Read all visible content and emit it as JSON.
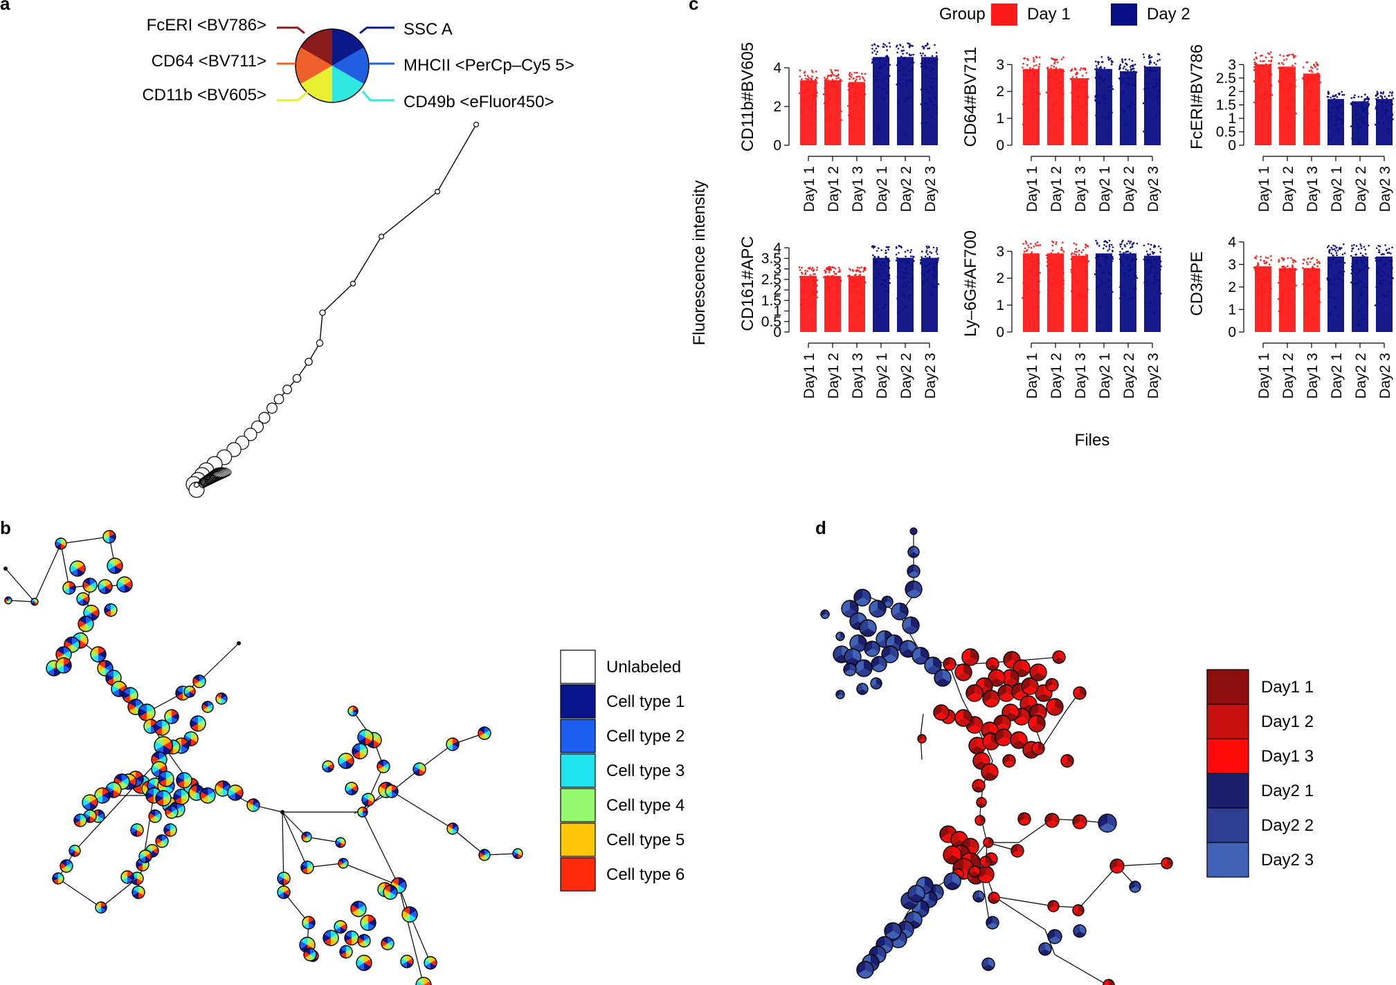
{
  "chart_data": [
    {
      "panel": "a",
      "type": "star-tree",
      "markers": [
        {
          "name": "FcERI <BV786>",
          "color": "#8B1A1A"
        },
        {
          "name": "SSC A",
          "color": "#0B1A8A"
        },
        {
          "name": "MHCII <PerCp–Cy5 5>",
          "color": "#1F5FE0"
        },
        {
          "name": "CD49b <eFluor450>",
          "color": "#2EE8E0"
        },
        {
          "name": "CD11b <BV605>",
          "color": "#E8F032"
        },
        {
          "name": "CD64 <BV711>",
          "color": "#F0602A"
        }
      ]
    },
    {
      "panel": "b",
      "type": "minimum-spanning-tree",
      "legend": [
        {
          "label": "Unlabeled",
          "color": "#FFFFFF"
        },
        {
          "label": "Cell type 1",
          "color": "#0A148C"
        },
        {
          "label": "Cell type 2",
          "color": "#1B5EF0"
        },
        {
          "label": "Cell type 3",
          "color": "#1EE3F0"
        },
        {
          "label": "Cell type 4",
          "color": "#96FA6E"
        },
        {
          "label": "Cell type 5",
          "color": "#FFC60A"
        },
        {
          "label": "Cell type 6",
          "color": "#FF2A0A"
        }
      ]
    },
    {
      "panel": "c",
      "type": "scatter",
      "legend_title": "Group",
      "groups": [
        {
          "name": "Day 1",
          "color": "#FF1A1A"
        },
        {
          "name": "Day 2",
          "color": "#0A0E85"
        }
      ],
      "ylabel": "Fluorescence intensity",
      "xlabel": "Files",
      "files": [
        "Day1 1",
        "Day1 2",
        "Day1 3",
        "Day2 1",
        "Day2 2",
        "Day2 3"
      ],
      "subplots": [
        {
          "marker": "CD11b#BV605",
          "ylim": [
            0,
            5
          ],
          "yticks": [
            0,
            2,
            4
          ],
          "ranges": [
            [
              0,
              3.9
            ],
            [
              0,
              3.9
            ],
            [
              0,
              3.8
            ],
            [
              0,
              5.3
            ],
            [
              0,
              5.3
            ],
            [
              0,
              5.3
            ]
          ]
        },
        {
          "marker": "CD64#BV711",
          "ylim": [
            0,
            3.6
          ],
          "yticks": [
            0,
            1,
            2,
            3
          ],
          "ranges": [
            [
              0,
              3.3
            ],
            [
              0,
              3.3
            ],
            [
              0,
              2.9
            ],
            [
              0,
              3.3
            ],
            [
              0,
              3.2
            ],
            [
              0,
              3.4
            ]
          ]
        },
        {
          "marker": "FcERI#BV786",
          "ylim": [
            0,
            3.6
          ],
          "yticks": [
            0,
            0.5,
            1,
            1.5,
            2,
            2.5,
            3
          ],
          "ranges": [
            [
              0,
              3.5
            ],
            [
              0,
              3.4
            ],
            [
              0,
              3.1
            ],
            [
              0,
              2.0
            ],
            [
              0,
              1.9
            ],
            [
              0,
              2.0
            ]
          ]
        },
        {
          "marker": "CD161#APC",
          "ylim": [
            0,
            4.6
          ],
          "yticks": [
            0,
            0.5,
            1,
            1.5,
            2,
            2.5,
            3,
            3.5,
            4
          ],
          "ranges": [
            [
              0,
              3.1
            ],
            [
              0,
              3.1
            ],
            [
              0,
              3.1
            ],
            [
              0,
              4.1
            ],
            [
              0,
              4.1
            ],
            [
              0,
              4.1
            ]
          ]
        },
        {
          "marker": "Ly–6G#AF700",
          "ylim": [
            0,
            3.6
          ],
          "yticks": [
            0,
            1,
            2,
            3
          ],
          "ranges": [
            [
              0,
              3.4
            ],
            [
              0,
              3.4
            ],
            [
              0,
              3.3
            ],
            [
              0,
              3.4
            ],
            [
              0,
              3.4
            ],
            [
              0,
              3.3
            ]
          ]
        },
        {
          "marker": "CD3#PE",
          "ylim": [
            0,
            4.3
          ],
          "yticks": [
            0,
            1,
            2,
            3,
            4
          ],
          "ranges": [
            [
              0,
              3.4
            ],
            [
              0,
              3.3
            ],
            [
              0,
              3.3
            ],
            [
              0,
              3.9
            ],
            [
              0,
              3.9
            ],
            [
              0,
              3.9
            ]
          ]
        }
      ]
    },
    {
      "panel": "d",
      "type": "minimum-spanning-tree",
      "legend": [
        {
          "label": "Day1 1",
          "color": "#8E0E0E"
        },
        {
          "label": "Day1 2",
          "color": "#C8100E"
        },
        {
          "label": "Day1 3",
          "color": "#FF0A0A"
        },
        {
          "label": "Day2 1",
          "color": "#1B1F6E"
        },
        {
          "label": "Day2 2",
          "color": "#2E3E93"
        },
        {
          "label": "Day2 3",
          "color": "#3F62B6"
        }
      ]
    }
  ],
  "labels": {
    "a": "a",
    "b": "b",
    "c": "c",
    "d": "d"
  }
}
